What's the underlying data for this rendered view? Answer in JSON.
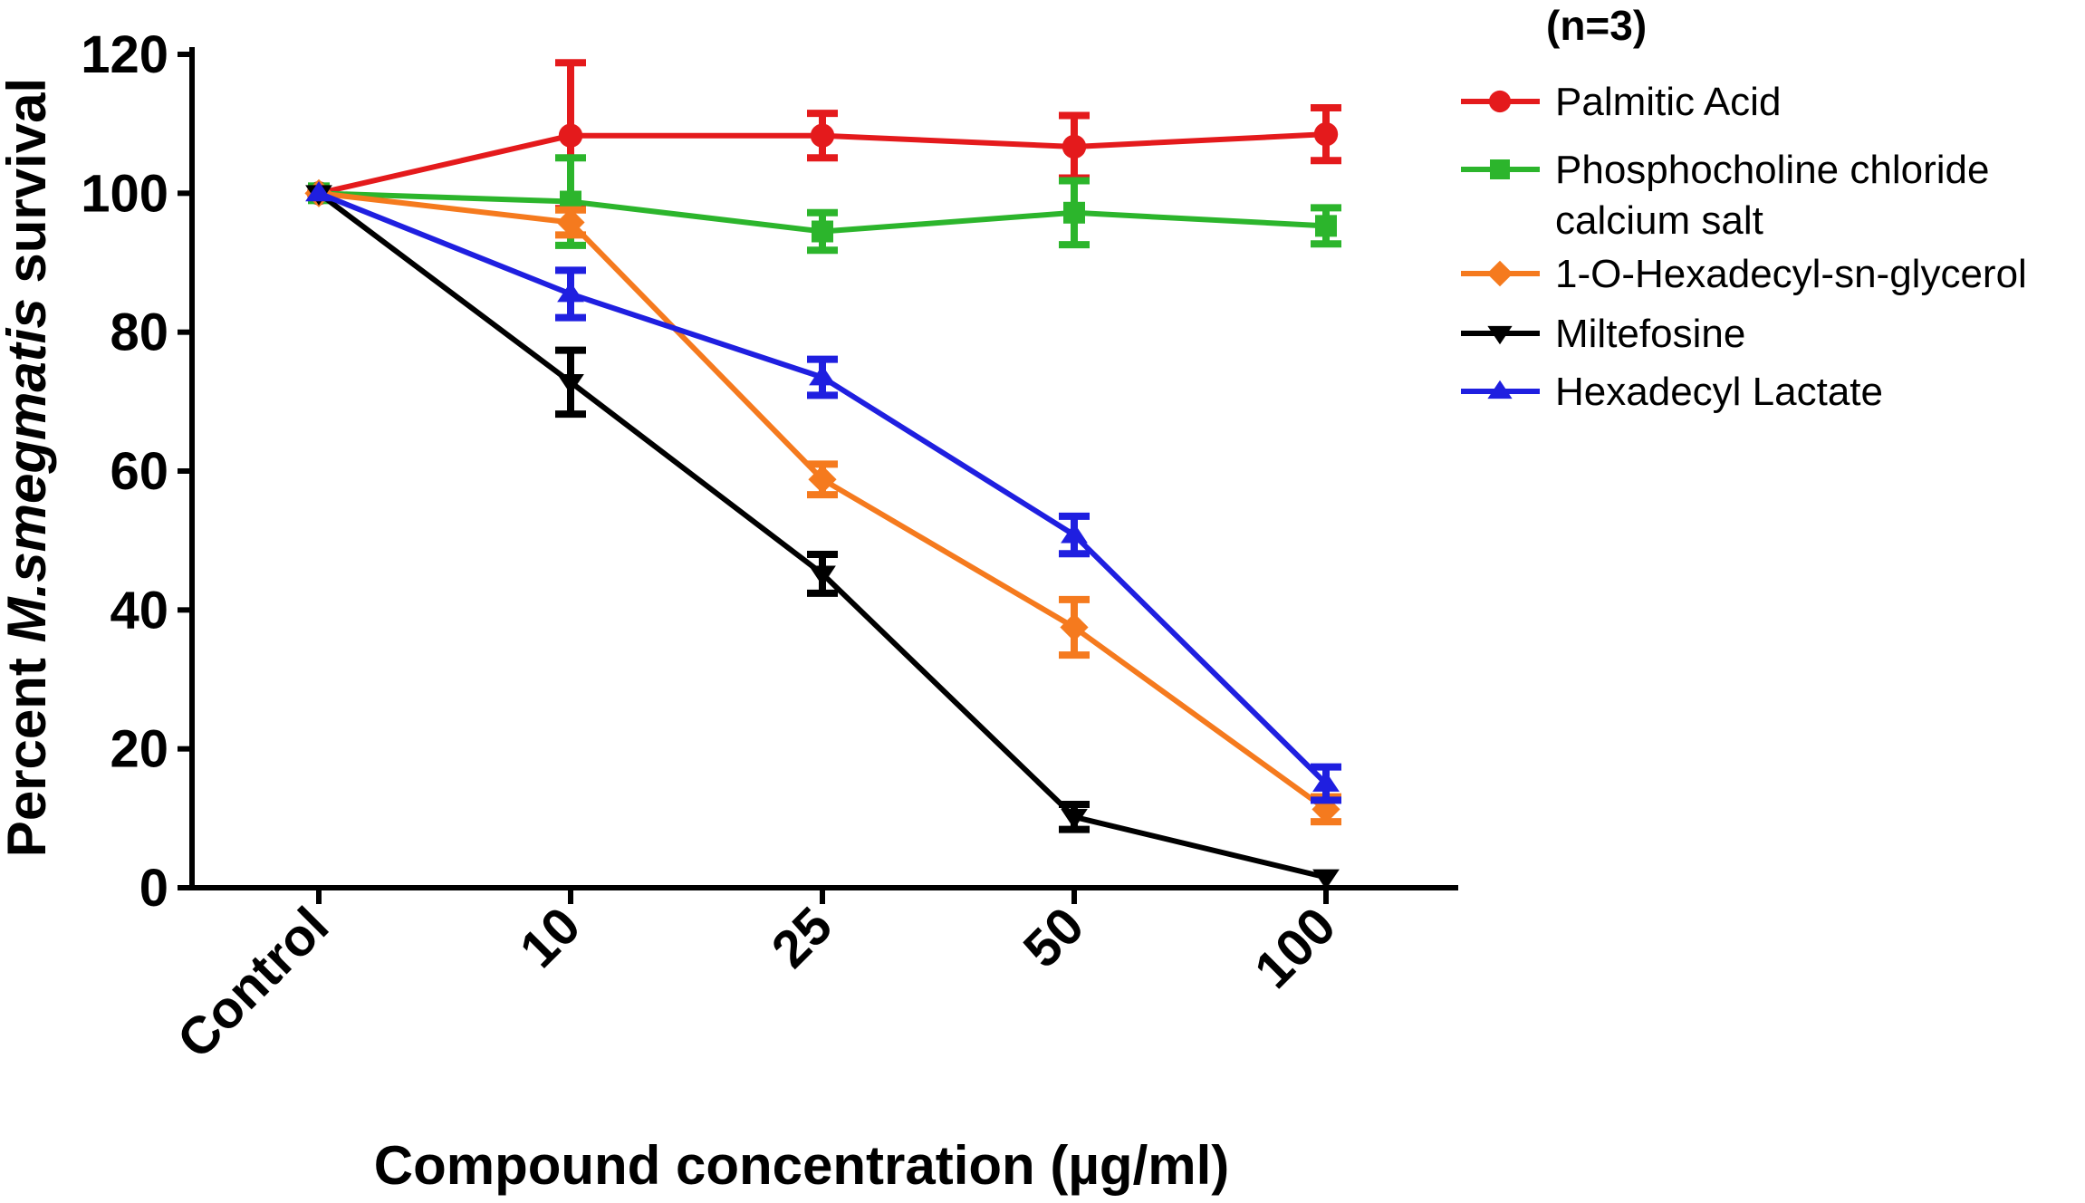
{
  "chart_data": {
    "type": "line",
    "title": "",
    "note": "(n=3)",
    "xlabel": "Compound concentration (µg/ml)",
    "ylabel_prefix": "Percent ",
    "ylabel_italic": "M.smegmatis",
    "ylabel_suffix": " survival",
    "categories": [
      "Control",
      "10",
      "25",
      "50",
      "100"
    ],
    "ylim": [
      0,
      120
    ],
    "yticks": [
      "0",
      "20",
      "40",
      "60",
      "80",
      "100",
      "120"
    ],
    "grid": false,
    "legend_position": "top-right",
    "series": [
      {
        "name": "Palmitic Acid",
        "legend_lines": [
          "Palmitic Acid"
        ],
        "color": "#e41a1c",
        "marker": "circle",
        "values": [
          100,
          108.3,
          108.3,
          106.7,
          108.5
        ],
        "errors": [
          0,
          10.5,
          3.2,
          4.5,
          3.8
        ]
      },
      {
        "name": "Phosphocholine chloride calcium salt",
        "legend_lines": [
          "Phosphocholine chloride",
          "calcium salt"
        ],
        "color": "#2cb52c",
        "marker": "square",
        "values": [
          100,
          98.8,
          94.5,
          97.2,
          95.3
        ],
        "errors": [
          0,
          6.3,
          2.7,
          4.6,
          2.6
        ]
      },
      {
        "name": "1-O-Hexadecyl-sn-glycerol",
        "legend_lines": [
          "1-O-Hexadecyl-sn-glycerol"
        ],
        "color": "#f57a1e",
        "marker": "diamond",
        "values": [
          100,
          95.8,
          58.8,
          37.5,
          11.3
        ],
        "errors": [
          0,
          1.8,
          2.2,
          4.0,
          1.8
        ]
      },
      {
        "name": "Miltefosine",
        "legend_lines": [
          "Miltefosine"
        ],
        "color": "#000000",
        "marker": "triangle-down",
        "values": [
          100,
          72.8,
          45.2,
          10.2,
          1.5
        ],
        "errors": [
          0,
          4.6,
          2.8,
          1.8,
          0
        ]
      },
      {
        "name": "Hexadecyl Lactate",
        "legend_lines": [
          "Hexadecyl Lactate"
        ],
        "color": "#1f1fe0",
        "marker": "triangle-up",
        "values": [
          100,
          85.5,
          73.5,
          50.8,
          15.0
        ],
        "errors": [
          0,
          3.4,
          2.6,
          2.7,
          2.4
        ]
      }
    ]
  }
}
